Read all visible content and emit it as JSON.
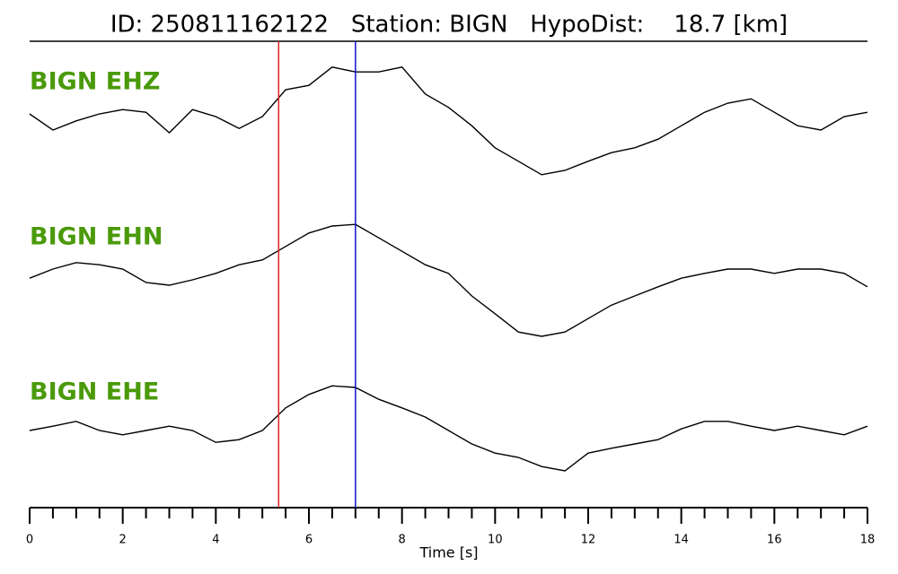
{
  "chart_data": {
    "type": "line",
    "title": "ID: 250811162122   Station: BIGN   HypoDist:    18.7 [km]",
    "xlabel": "Time [s]",
    "xlim": [
      0,
      18
    ],
    "xticks": [
      0,
      2,
      4,
      6,
      8,
      10,
      12,
      14,
      16,
      18
    ],
    "xminorticks": [
      0.5,
      1,
      1.5,
      2.5,
      3,
      3.5,
      4.5,
      5,
      5.5,
      6.5,
      7,
      7.5,
      8.5,
      9,
      9.5,
      10.5,
      11,
      11.5,
      12.5,
      13,
      13.5,
      14.5,
      15,
      15.5,
      16.5,
      17,
      17.5
    ],
    "label_color": "#4a9a0a",
    "x": [
      0,
      0.5,
      1,
      1.5,
      2,
      2.5,
      3,
      3.5,
      4,
      4.5,
      5,
      5.5,
      6,
      6.5,
      7,
      7.5,
      8,
      8.5,
      9,
      9.5,
      10,
      10.5,
      11,
      11.5,
      12,
      12.5,
      13,
      13.5,
      14,
      14.5,
      15,
      15.5,
      16,
      16.5,
      17,
      17.5,
      18
    ],
    "series": [
      {
        "name": "BIGN EHZ",
        "color": "#000000",
        "values": [
          0.05,
          -0.25,
          -0.08,
          0.05,
          0.13,
          0.08,
          -0.3,
          0.13,
          0,
          -0.22,
          0,
          0.5,
          0.58,
          0.92,
          0.83,
          0.83,
          0.92,
          0.42,
          0.17,
          -0.17,
          -0.58,
          -0.83,
          -1.08,
          -1,
          -0.83,
          -0.67,
          -0.58,
          -0.42,
          -0.17,
          0.08,
          0.25,
          0.33,
          0.08,
          -0.17,
          -0.25,
          0,
          0.08
        ]
      },
      {
        "name": "BIGN EHN",
        "color": "#000000",
        "values": [
          -0.17,
          0,
          0.12,
          0.08,
          0,
          -0.25,
          -0.3,
          -0.2,
          -0.08,
          0.08,
          0.17,
          0.42,
          0.67,
          0.8,
          0.83,
          0.58,
          0.33,
          0.08,
          -0.08,
          -0.5,
          -0.83,
          -1.17,
          -1.25,
          -1.17,
          -0.92,
          -0.67,
          -0.5,
          -0.33,
          -0.17,
          -0.08,
          0,
          0,
          -0.08,
          0,
          0,
          -0.08,
          -0.33
        ]
      },
      {
        "name": "BIGN EHE",
        "color": "#000000",
        "values": [
          0,
          0.08,
          0.17,
          0,
          -0.08,
          0,
          0.08,
          0,
          -0.22,
          -0.17,
          0,
          0.42,
          0.67,
          0.83,
          0.8,
          0.58,
          0.42,
          0.25,
          0,
          -0.25,
          -0.42,
          -0.5,
          -0.67,
          -0.75,
          -0.42,
          -0.33,
          -0.25,
          -0.17,
          0.03,
          0.17,
          0.17,
          0.08,
          0,
          0.08,
          0,
          -0.08,
          0.08
        ]
      }
    ],
    "picks": [
      {
        "x": 5.35,
        "color": "#e02020"
      },
      {
        "x": 7.0,
        "color": "#1010d0"
      }
    ]
  }
}
